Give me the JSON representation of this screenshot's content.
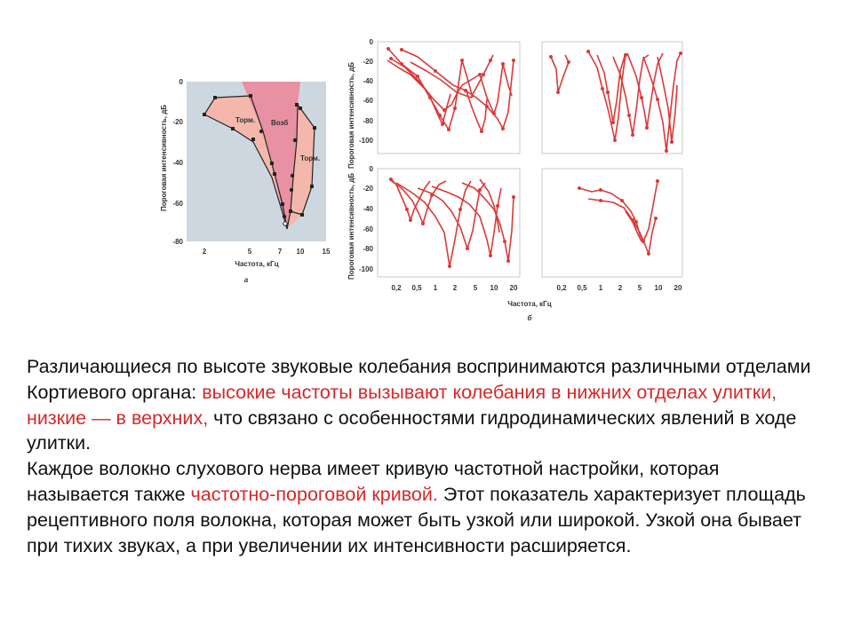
{
  "figure_a": {
    "y_ticks": [
      "0",
      "-20",
      "-40",
      "-60",
      "-80"
    ],
    "x_ticks": [
      "2",
      "5",
      "7",
      "10",
      "15"
    ],
    "ylabel": "Пороговая интенсивность, дБ",
    "xlabel": "Частота, кГц",
    "region_labels": [
      "Торм.",
      "Возб",
      "Торм."
    ],
    "caption": "а",
    "colors": {
      "bg": "#cdd7df",
      "excitation": "#e891a2",
      "inhibition": "#f3b8ab",
      "line": "#222222"
    }
  },
  "figure_b": {
    "y_ticks_top": [
      "0",
      "-20",
      "-40",
      "-60",
      "-80",
      "-100"
    ],
    "y_ticks_bottom": [
      "0",
      "-20",
      "-40",
      "-60",
      "-80",
      "-100"
    ],
    "ylabel_top": "Пороговая интенсивность, дБ",
    "ylabel_bottom": "Пороговая интенсивность, дБ",
    "x_ticks_left": [
      "0,2",
      "0,5",
      "1",
      "2",
      "5",
      "10",
      "20"
    ],
    "x_ticks_right": [
      "0,2",
      "0,5",
      "1",
      "2",
      "5",
      "10",
      "20"
    ],
    "xlabel": "Частота, кГц",
    "caption": "б",
    "colors": {
      "curve": "#d93a3a",
      "panel_border": "#c8c8c8"
    }
  },
  "text": {
    "p1_start": " Различающиеся по высоте звуковые колебания воспринимаются различными отделами Кортиевого органа: ",
    "p1_highlight": "высокие частоты вызывают колебания в нижних отделах улитки, низкие — в верхних,",
    "p1_end": " что связано с особенностями гидродинамических явлений в ходе улитки.",
    "p2_start": "Каждое волокно слухового нерва имеет кривую частотной настройки, которая называется также ",
    "p2_highlight": "частотно-пороговой кривой.",
    "p2_end": " Этот показатель характеризует площадь рецептивного поля волокна, которая может быть узкой или широкой. Узкой она бывает при тихих звуках, а при увеличении их интенсивности расширяется.",
    "highlight_color": "#d62828"
  }
}
